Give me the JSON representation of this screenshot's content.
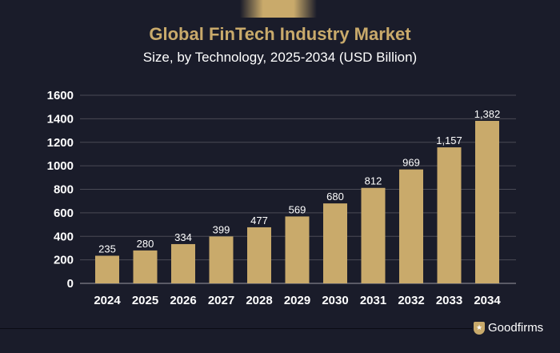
{
  "chart_data": {
    "type": "bar",
    "title": "Global FinTech Industry Market",
    "subtitle": "Size, by Technology, 2025-2034 (USD Billion)",
    "categories": [
      "2024",
      "2025",
      "2026",
      "2027",
      "2028",
      "2029",
      "2030",
      "2031",
      "2032",
      "2033",
      "2034"
    ],
    "values": [
      235,
      280,
      334,
      399,
      477,
      569,
      680,
      812,
      969,
      1157,
      1382
    ],
    "data_labels": [
      "235",
      "280",
      "334",
      "399",
      "477",
      "569",
      "680",
      "812",
      "969",
      "1,157",
      "1,382"
    ],
    "yticks": [
      0,
      200,
      400,
      600,
      800,
      1000,
      1200,
      1400,
      1600
    ],
    "ylim": [
      0,
      1600
    ],
    "grid": true,
    "colors": {
      "bar": "#c9aa6b",
      "title": "#c9aa6b",
      "background": "#1a1c2a",
      "grid": "#4a4a55"
    }
  },
  "brand": {
    "name": "Goodfirms",
    "icon": "shield-star-icon"
  }
}
